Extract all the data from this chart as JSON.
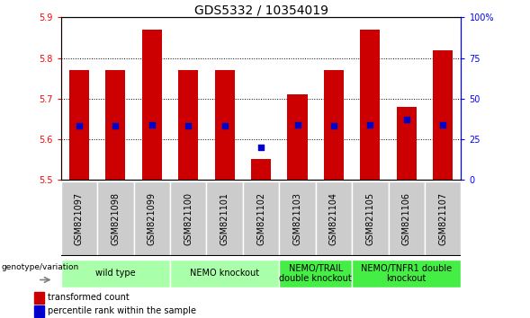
{
  "title": "GDS5332 / 10354019",
  "samples": [
    "GSM821097",
    "GSM821098",
    "GSM821099",
    "GSM821100",
    "GSM821101",
    "GSM821102",
    "GSM821103",
    "GSM821104",
    "GSM821105",
    "GSM821106",
    "GSM821107"
  ],
  "transformed_counts": [
    5.77,
    5.77,
    5.87,
    5.77,
    5.77,
    5.55,
    5.71,
    5.77,
    5.87,
    5.68,
    5.82
  ],
  "percentile_ranks": [
    33,
    33,
    34,
    33,
    33,
    20,
    34,
    33,
    34,
    37,
    34
  ],
  "ylim_left": [
    5.5,
    5.9
  ],
  "ylim_right": [
    0,
    100
  ],
  "yticks_left": [
    5.5,
    5.6,
    5.7,
    5.8,
    5.9
  ],
  "yticks_right": [
    0,
    25,
    50,
    75,
    100
  ],
  "bar_color": "#cc0000",
  "dot_color": "#0000cc",
  "bar_width": 0.55,
  "groups": [
    {
      "label": "wild type",
      "start": 0,
      "end": 2,
      "color": "#aaffaa"
    },
    {
      "label": "NEMO knockout",
      "start": 3,
      "end": 5,
      "color": "#aaffaa"
    },
    {
      "label": "NEMO/TRAIL\ndouble knockout",
      "start": 6,
      "end": 7,
      "color": "#44ee44"
    },
    {
      "label": "NEMO/TNFR1 double\nknockout",
      "start": 8,
      "end": 10,
      "color": "#44ee44"
    }
  ],
  "genotype_label": "genotype/variation",
  "legend_bar_label": "transformed count",
  "legend_dot_label": "percentile rank within the sample",
  "title_fontsize": 10,
  "tick_fontsize": 7,
  "label_fontsize": 7,
  "group_fontsize": 7,
  "sample_bg_color": "#cccccc",
  "sample_border_color": "#999999"
}
